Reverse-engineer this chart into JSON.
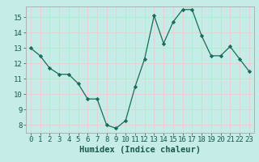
{
  "x": [
    0,
    1,
    2,
    3,
    4,
    5,
    6,
    7,
    8,
    9,
    10,
    11,
    12,
    13,
    14,
    15,
    16,
    17,
    18,
    19,
    20,
    21,
    22,
    23
  ],
  "y": [
    13.0,
    12.5,
    11.7,
    11.3,
    11.3,
    10.7,
    9.7,
    9.7,
    8.0,
    7.8,
    8.3,
    10.5,
    12.3,
    15.1,
    13.3,
    14.7,
    15.5,
    15.5,
    13.8,
    12.5,
    12.5,
    13.1,
    12.3,
    11.5
  ],
  "xlabel": "Humidex (Indice chaleur)",
  "ylim": [
    7.5,
    15.7
  ],
  "xlim": [
    -0.5,
    23.5
  ],
  "yticks": [
    8,
    9,
    10,
    11,
    12,
    13,
    14,
    15
  ],
  "xticks": [
    0,
    1,
    2,
    3,
    4,
    5,
    6,
    7,
    8,
    9,
    10,
    11,
    12,
    13,
    14,
    15,
    16,
    17,
    18,
    19,
    20,
    21,
    22,
    23
  ],
  "line_color": "#1a6b5a",
  "marker_color": "#1a6b5a",
  "bg_color": "#c5ece6",
  "grid_color": "#e8d0d0",
  "tick_label_fontsize": 6.5,
  "xlabel_fontsize": 7.5
}
